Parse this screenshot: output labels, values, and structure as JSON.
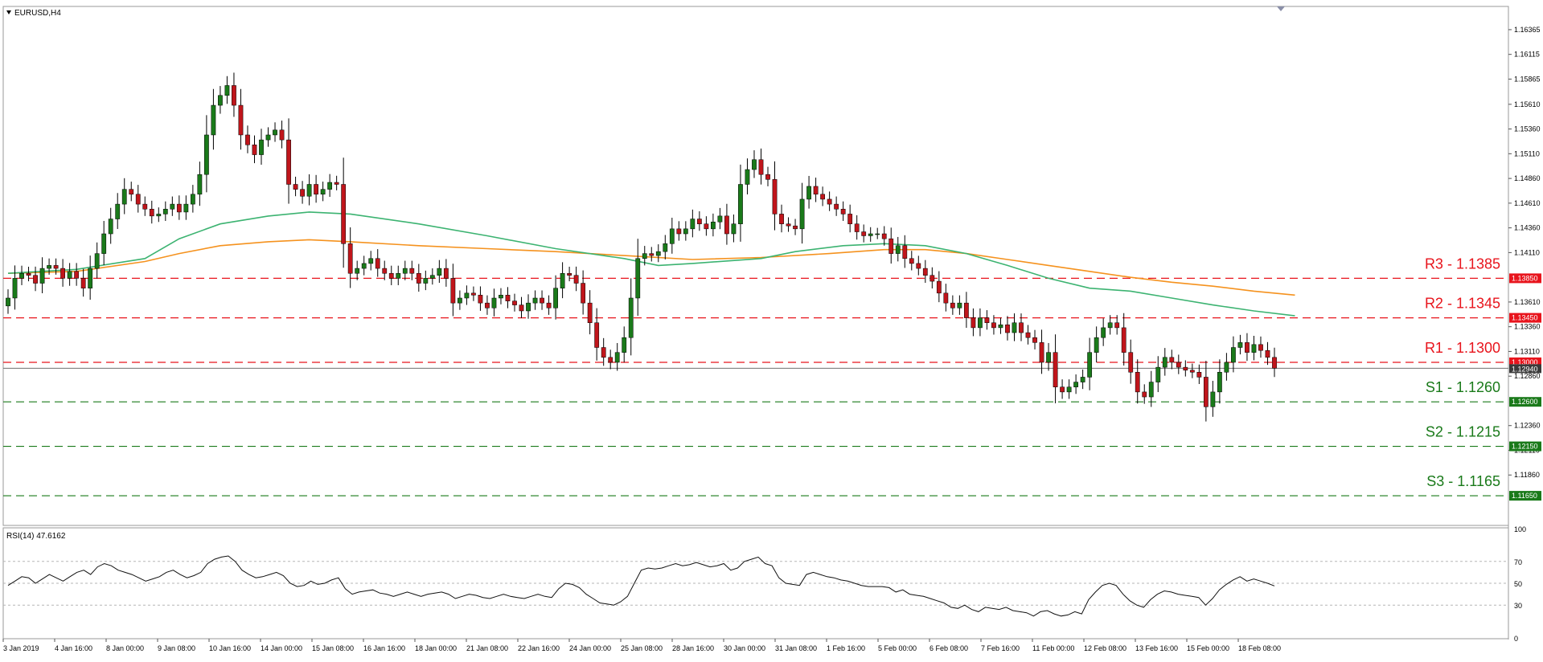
{
  "chart_data": {
    "type": "candlestick",
    "symbol_label": "EURUSD,H4",
    "price_axis": {
      "ylim": [
        1.1135,
        1.166
      ],
      "tick_labels": [
        "1.16365",
        "1.16115",
        "1.15865",
        "1.15610",
        "1.15360",
        "1.15110",
        "1.14860",
        "1.14610",
        "1.14360",
        "1.14110",
        "1.13610",
        "1.13360",
        "1.13110",
        "1.12860",
        "1.12360",
        "1.12110",
        "1.11860"
      ]
    },
    "time_axis": {
      "tick_labels": [
        "3 Jan 2019",
        "4 Jan 16:00",
        "8 Jan 00:00",
        "9 Jan 08:00",
        "10 Jan 16:00",
        "14 Jan 00:00",
        "15 Jan 08:00",
        "16 Jan 16:00",
        "18 Jan 00:00",
        "21 Jan 08:00",
        "22 Jan 16:00",
        "24 Jan 00:00",
        "25 Jan 08:00",
        "28 Jan 16:00",
        "30 Jan 00:00",
        "31 Jan 08:00",
        "1 Feb 16:00",
        "5 Feb 00:00",
        "6 Feb 08:00",
        "7 Feb 16:00",
        "11 Feb 00:00",
        "12 Feb 08:00",
        "13 Feb 16:00",
        "15 Feb 00:00",
        "18 Feb 08:00"
      ]
    },
    "levels": [
      {
        "label": "R3 - 1.1385",
        "value": 1.1385,
        "box": "1.13850",
        "color": "#e8141c"
      },
      {
        "label": "R2 - 1.1345",
        "value": 1.1345,
        "box": "1.13450",
        "color": "#e8141c"
      },
      {
        "label": "R1 - 1.1300",
        "value": 1.13,
        "box": "1.13000",
        "color": "#e8141c"
      },
      {
        "label": "S1 - 1.1260",
        "value": 1.126,
        "box": "1.12600",
        "color": "#1a7a1a"
      },
      {
        "label": "S2 - 1.1215",
        "value": 1.1215,
        "box": "1.12150",
        "color": "#1a7a1a"
      },
      {
        "label": "S3 - 1.1165",
        "value": 1.1165,
        "box": "1.11650",
        "color": "#1a7a1a"
      }
    ],
    "current_price": {
      "value": 1.1294,
      "box": "1.12940"
    },
    "close_series": [
      1.1365,
      1.1385,
      1.139,
      1.1388,
      1.138,
      1.1395,
      1.1398,
      1.1395,
      1.1385,
      1.1392,
      1.1385,
      1.1375,
      1.1395,
      1.141,
      1.143,
      1.1445,
      1.146,
      1.1475,
      1.147,
      1.146,
      1.1455,
      1.1448,
      1.145,
      1.1455,
      1.146,
      1.1452,
      1.146,
      1.147,
      1.149,
      1.153,
      1.156,
      1.157,
      1.158,
      1.156,
      1.153,
      1.152,
      1.151,
      1.1525,
      1.153,
      1.1535,
      1.1525,
      1.148,
      1.1475,
      1.1468,
      1.148,
      1.147,
      1.1475,
      1.1482,
      1.148,
      1.142,
      1.139,
      1.1395,
      1.14,
      1.1405,
      1.1395,
      1.139,
      1.1385,
      1.139,
      1.1395,
      1.139,
      1.138,
      1.1385,
      1.1388,
      1.1395,
      1.1385,
      1.136,
      1.1365,
      1.137,
      1.1368,
      1.136,
      1.1355,
      1.1365,
      1.1368,
      1.1362,
      1.1358,
      1.1352,
      1.136,
      1.1365,
      1.136,
      1.1355,
      1.1375,
      1.139,
      1.1388,
      1.138,
      1.136,
      1.134,
      1.1315,
      1.1305,
      1.13,
      1.131,
      1.1325,
      1.1365,
      1.1405,
      1.141,
      1.1408,
      1.1412,
      1.142,
      1.1435,
      1.143,
      1.1435,
      1.1445,
      1.144,
      1.1435,
      1.1442,
      1.1448,
      1.143,
      1.144,
      1.148,
      1.1495,
      1.1505,
      1.149,
      1.1485,
      1.145,
      1.144,
      1.1438,
      1.1435,
      1.1465,
      1.1478,
      1.147,
      1.1465,
      1.146,
      1.1455,
      1.145,
      1.144,
      1.1432,
      1.1428,
      1.143,
      1.143,
      1.1425,
      1.141,
      1.1418,
      1.1405,
      1.14,
      1.1395,
      1.1388,
      1.1382,
      1.137,
      1.136,
      1.1355,
      1.136,
      1.1345,
      1.1335,
      1.1345,
      1.134,
      1.1335,
      1.1338,
      1.133,
      1.134,
      1.133,
      1.1325,
      1.132,
      1.13,
      1.131,
      1.1275,
      1.127,
      1.1275,
      1.128,
      1.1285,
      1.131,
      1.1325,
      1.1335,
      1.134,
      1.1335,
      1.131,
      1.129,
      1.127,
      1.1265,
      1.128,
      1.1295,
      1.1305,
      1.13,
      1.1295,
      1.1292,
      1.129,
      1.1285,
      1.1255,
      1.127,
      1.129,
      1.13,
      1.1315,
      1.132,
      1.131,
      1.1318,
      1.1312,
      1.1305,
      1.1294
    ],
    "sma_green": [
      [
        0,
        1.139
      ],
      [
        10,
        1.1394
      ],
      [
        20,
        1.1405
      ],
      [
        25,
        1.1425
      ],
      [
        31,
        1.144
      ],
      [
        38,
        1.1448
      ],
      [
        44,
        1.1452
      ],
      [
        50,
        1.145
      ],
      [
        60,
        1.144
      ],
      [
        70,
        1.1428
      ],
      [
        80,
        1.1415
      ],
      [
        90,
        1.1405
      ],
      [
        95,
        1.1398
      ],
      [
        100,
        1.14
      ],
      [
        110,
        1.1405
      ],
      [
        115,
        1.1412
      ],
      [
        122,
        1.1418
      ],
      [
        128,
        1.142
      ],
      [
        134,
        1.1418
      ],
      [
        140,
        1.141
      ],
      [
        146,
        1.1398
      ],
      [
        152,
        1.1385
      ],
      [
        158,
        1.1375
      ],
      [
        164,
        1.1372
      ],
      [
        170,
        1.1365
      ],
      [
        176,
        1.1358
      ],
      [
        182,
        1.1352
      ],
      [
        188,
        1.1347
      ]
    ],
    "sma_orange": [
      [
        0,
        1.139
      ],
      [
        10,
        1.1392
      ],
      [
        20,
        1.1402
      ],
      [
        25,
        1.141
      ],
      [
        31,
        1.1418
      ],
      [
        38,
        1.1422
      ],
      [
        44,
        1.1424
      ],
      [
        50,
        1.1422
      ],
      [
        60,
        1.1418
      ],
      [
        70,
        1.1415
      ],
      [
        80,
        1.1412
      ],
      [
        90,
        1.1408
      ],
      [
        100,
        1.1404
      ],
      [
        110,
        1.1406
      ],
      [
        120,
        1.141
      ],
      [
        128,
        1.1414
      ],
      [
        134,
        1.1414
      ],
      [
        140,
        1.141
      ],
      [
        146,
        1.1404
      ],
      [
        152,
        1.1398
      ],
      [
        158,
        1.1392
      ],
      [
        164,
        1.1386
      ],
      [
        170,
        1.1381
      ],
      [
        176,
        1.1377
      ],
      [
        182,
        1.1372
      ],
      [
        188,
        1.1368
      ]
    ],
    "rsi": {
      "label": "RSI(14) 47.6162",
      "ylim": [
        0,
        100
      ],
      "tick_labels": [
        "100",
        "70",
        "50",
        "30",
        "0"
      ],
      "levels": [
        70,
        50,
        30
      ],
      "values": [
        48,
        52,
        56,
        55,
        50,
        54,
        58,
        55,
        52,
        56,
        60,
        62,
        58,
        65,
        68,
        66,
        62,
        60,
        58,
        55,
        52,
        54,
        56,
        60,
        62,
        58,
        55,
        57,
        60,
        68,
        72,
        74,
        75,
        70,
        62,
        58,
        55,
        56,
        58,
        60,
        57,
        50,
        47,
        48,
        52,
        49,
        50,
        53,
        55,
        45,
        40,
        42,
        43,
        44,
        41,
        40,
        38,
        40,
        42,
        40,
        38,
        40,
        41,
        42,
        40,
        36,
        38,
        40,
        39,
        37,
        36,
        38,
        40,
        38,
        37,
        36,
        38,
        40,
        38,
        37,
        45,
        50,
        49,
        46,
        40,
        36,
        32,
        31,
        30,
        33,
        38,
        50,
        62,
        64,
        63,
        64,
        66,
        68,
        66,
        67,
        69,
        67,
        65,
        66,
        68,
        62,
        64,
        70,
        72,
        74,
        68,
        66,
        55,
        50,
        49,
        48,
        58,
        60,
        58,
        56,
        55,
        53,
        52,
        50,
        48,
        47,
        47,
        47,
        46,
        42,
        44,
        40,
        39,
        38,
        36,
        34,
        32,
        28,
        27,
        30,
        26,
        24,
        28,
        27,
        26,
        28,
        25,
        24,
        23,
        20,
        24,
        25,
        22,
        20,
        21,
        24,
        22,
        35,
        42,
        48,
        50,
        48,
        40,
        34,
        30,
        28,
        35,
        40,
        43,
        42,
        40,
        39,
        38,
        37,
        30,
        36,
        44,
        49,
        53,
        56,
        52,
        54,
        52,
        50,
        47.6
      ]
    }
  }
}
